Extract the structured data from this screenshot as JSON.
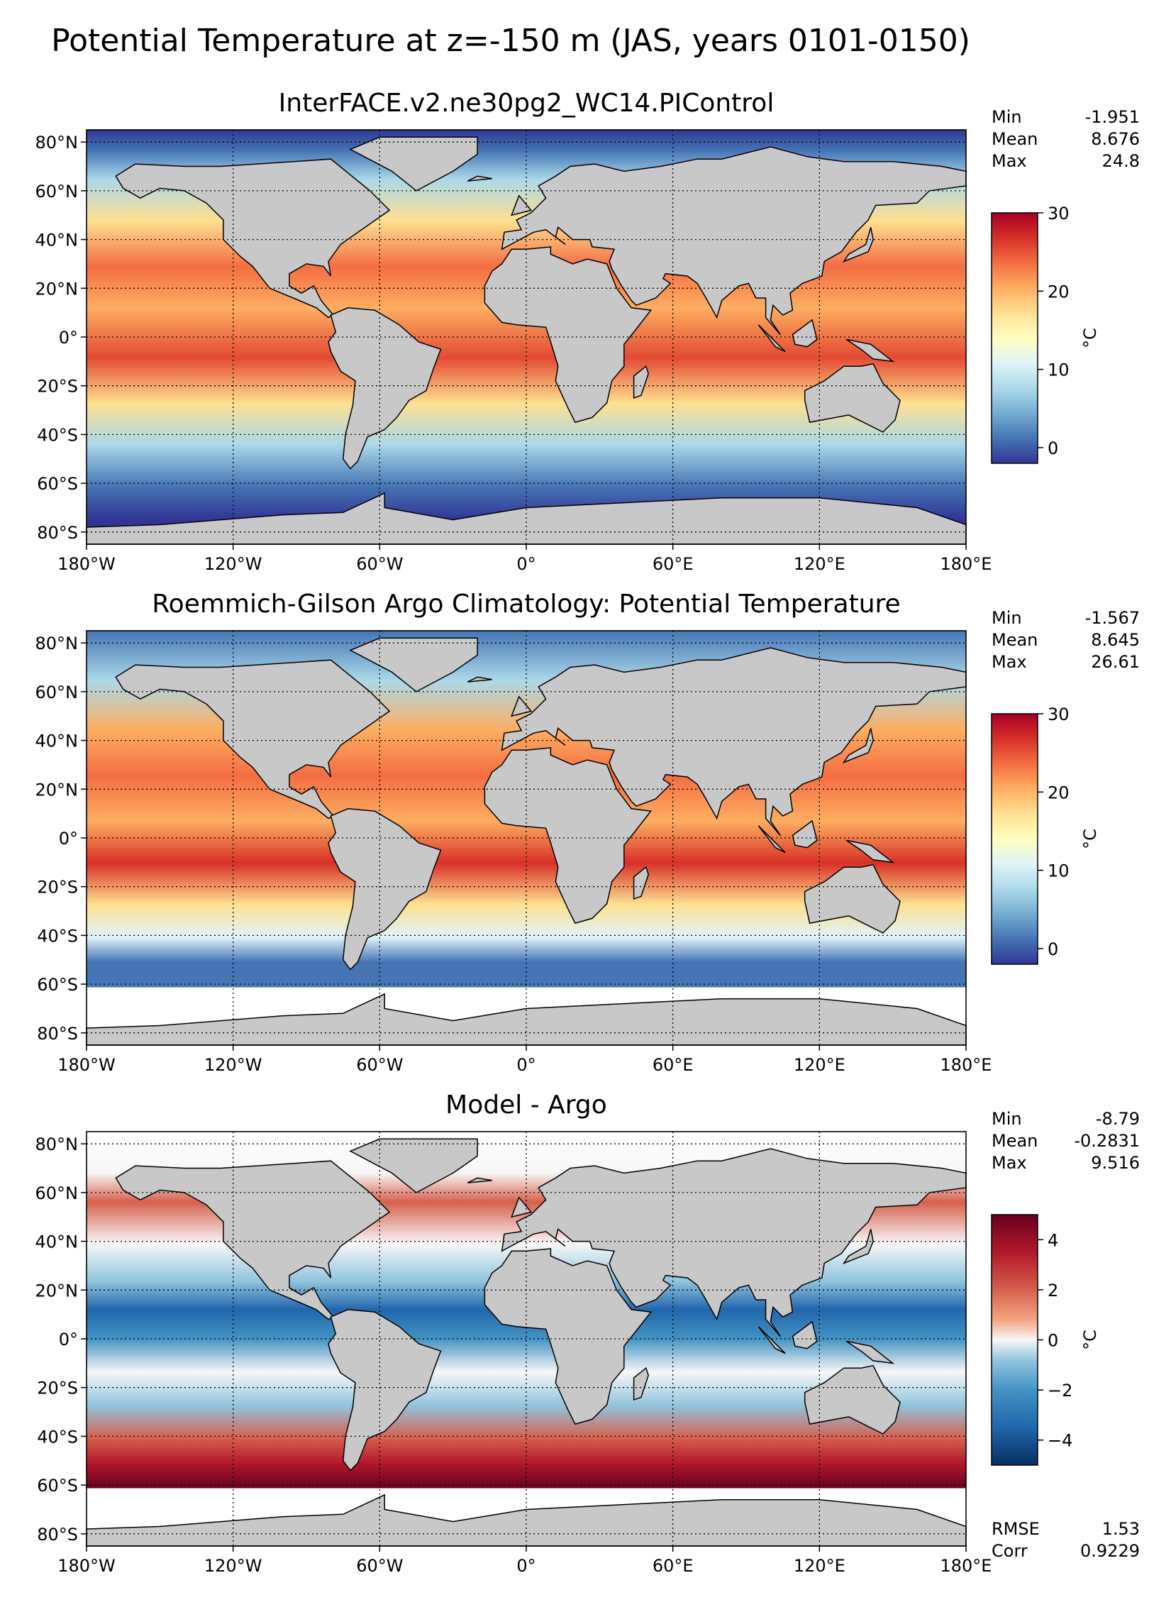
{
  "figure_title": "Potential Temperature at z=-150 m (JAS, years 0101-0150)",
  "colors": {
    "land": "#c8c8c8",
    "ocean_warm": "#d7302b",
    "ocean_cool": "#4575b4",
    "ocean_mid": "#ffffbf",
    "missing": "#ffffff"
  },
  "chart_data": [
    {
      "type": "heatmap",
      "title": "InterFACE.v2.ne30pg2_WC14.PIControl",
      "x_ticks": [
        "180°W",
        "120°W",
        "60°W",
        "0°",
        "60°E",
        "120°E",
        "180°E"
      ],
      "y_ticks": [
        "80°N",
        "60°N",
        "40°N",
        "20°N",
        "0°",
        "20°S",
        "40°S",
        "60°S",
        "80°S"
      ],
      "xlim": [
        -180,
        180
      ],
      "ylim": [
        -85,
        85
      ],
      "grid": true,
      "stats": [
        {
          "label": "Min",
          "value": "-1.951"
        },
        {
          "label": "Mean",
          "value": "8.676"
        },
        {
          "label": "Max",
          "value": "24.8"
        }
      ],
      "colorbar": {
        "label": "°C",
        "ticks": [
          "0",
          "10",
          "20",
          "30"
        ],
        "tick_values": [
          0,
          10,
          20,
          30
        ],
        "range": [
          -2,
          30
        ],
        "colormap": "RdYlBu_r"
      }
    },
    {
      "type": "heatmap",
      "title": "Roemmich-Gilson Argo Climatology: Potential Temperature",
      "x_ticks": [
        "180°W",
        "120°W",
        "60°W",
        "0°",
        "60°E",
        "120°E",
        "180°E"
      ],
      "y_ticks": [
        "80°N",
        "60°N",
        "40°N",
        "20°N",
        "0°",
        "20°S",
        "40°S",
        "60°S",
        "80°S"
      ],
      "xlim": [
        -180,
        180
      ],
      "ylim": [
        -85,
        85
      ],
      "grid": true,
      "stats": [
        {
          "label": "Min",
          "value": "-1.567"
        },
        {
          "label": "Mean",
          "value": "8.645"
        },
        {
          "label": "Max",
          "value": "26.61"
        }
      ],
      "colorbar": {
        "label": "°C",
        "ticks": [
          "0",
          "10",
          "20",
          "30"
        ],
        "tick_values": [
          0,
          10,
          20,
          30
        ],
        "range": [
          -2,
          30
        ],
        "colormap": "RdYlBu_r"
      }
    },
    {
      "type": "heatmap",
      "title": "Model - Argo",
      "x_ticks": [
        "180°W",
        "120°W",
        "60°W",
        "0°",
        "60°E",
        "120°E",
        "180°E"
      ],
      "y_ticks": [
        "80°N",
        "60°N",
        "40°N",
        "20°N",
        "0°",
        "20°S",
        "40°S",
        "60°S",
        "80°S"
      ],
      "xlim": [
        -180,
        180
      ],
      "ylim": [
        -85,
        85
      ],
      "grid": true,
      "stats": [
        {
          "label": "Min",
          "value": "-8.79"
        },
        {
          "label": "Mean",
          "value": "-0.2831"
        },
        {
          "label": "Max",
          "value": "9.516"
        }
      ],
      "extra_stats": [
        {
          "label": "RMSE",
          "value": "1.53"
        },
        {
          "label": "Corr",
          "value": "0.9229"
        }
      ],
      "colorbar": {
        "label": "°C",
        "ticks": [
          "4",
          "2",
          "0",
          "−2",
          "−4"
        ],
        "tick_values": [
          4,
          2,
          0,
          -2,
          -4
        ],
        "range": [
          -5,
          5
        ],
        "colormap": "RdBu_r"
      }
    }
  ]
}
